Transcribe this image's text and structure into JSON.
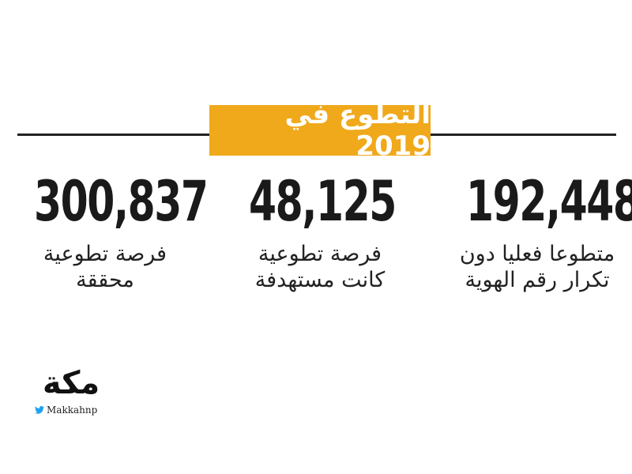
{
  "header": {
    "title": "التطوع في 2019"
  },
  "stats": [
    {
      "number": "192,448",
      "label": [
        "متطوعا فعليا دون",
        "تكرار رقم الهوية"
      ]
    },
    {
      "number": "48,125",
      "label": [
        "فرصة تطوعية",
        "كانت مستهدفة"
      ]
    },
    {
      "number": "300,837",
      "label": [
        "فرصة تطوعية",
        "محققة"
      ]
    }
  ],
  "footer": {
    "logo": "مكة",
    "handle": "Makkahnp"
  }
}
